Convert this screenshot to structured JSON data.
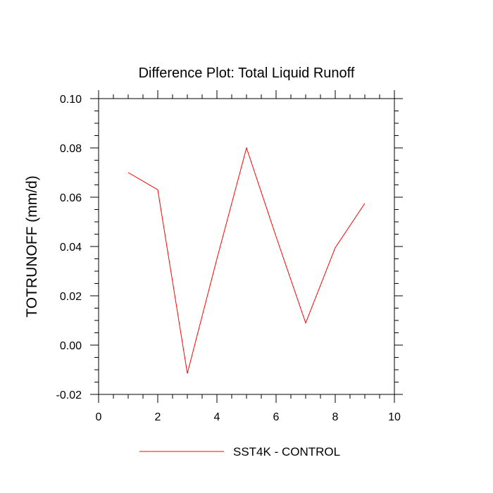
{
  "chart_data": {
    "type": "line",
    "title": "Difference Plot: Total Liquid Runoff",
    "xlabel": "",
    "ylabel": "TOTRUNOFF  (mm/d)",
    "xlim": [
      0,
      10
    ],
    "ylim": [
      -0.02,
      0.1
    ],
    "x_ticks": [
      0,
      2,
      4,
      6,
      8,
      10
    ],
    "x_tick_labels": [
      "0",
      "2",
      "4",
      "6",
      "8",
      "10"
    ],
    "y_ticks": [
      -0.02,
      0.0,
      0.02,
      0.04,
      0.06,
      0.08,
      0.1
    ],
    "y_tick_labels": [
      "-0.02",
      "0.00",
      "0.02",
      "0.04",
      "0.06",
      "0.08",
      "0.10"
    ],
    "grid": false,
    "legend_position": "bottom-center",
    "series": [
      {
        "name": "SST4K - CONTROL",
        "color": "#ff0000",
        "x": [
          1,
          2,
          3,
          4,
          5,
          6,
          7,
          8,
          9
        ],
        "y": [
          0.07,
          0.063,
          -0.0115,
          0.035,
          0.08,
          0.044,
          0.009,
          0.0395,
          0.0575
        ]
      }
    ]
  }
}
